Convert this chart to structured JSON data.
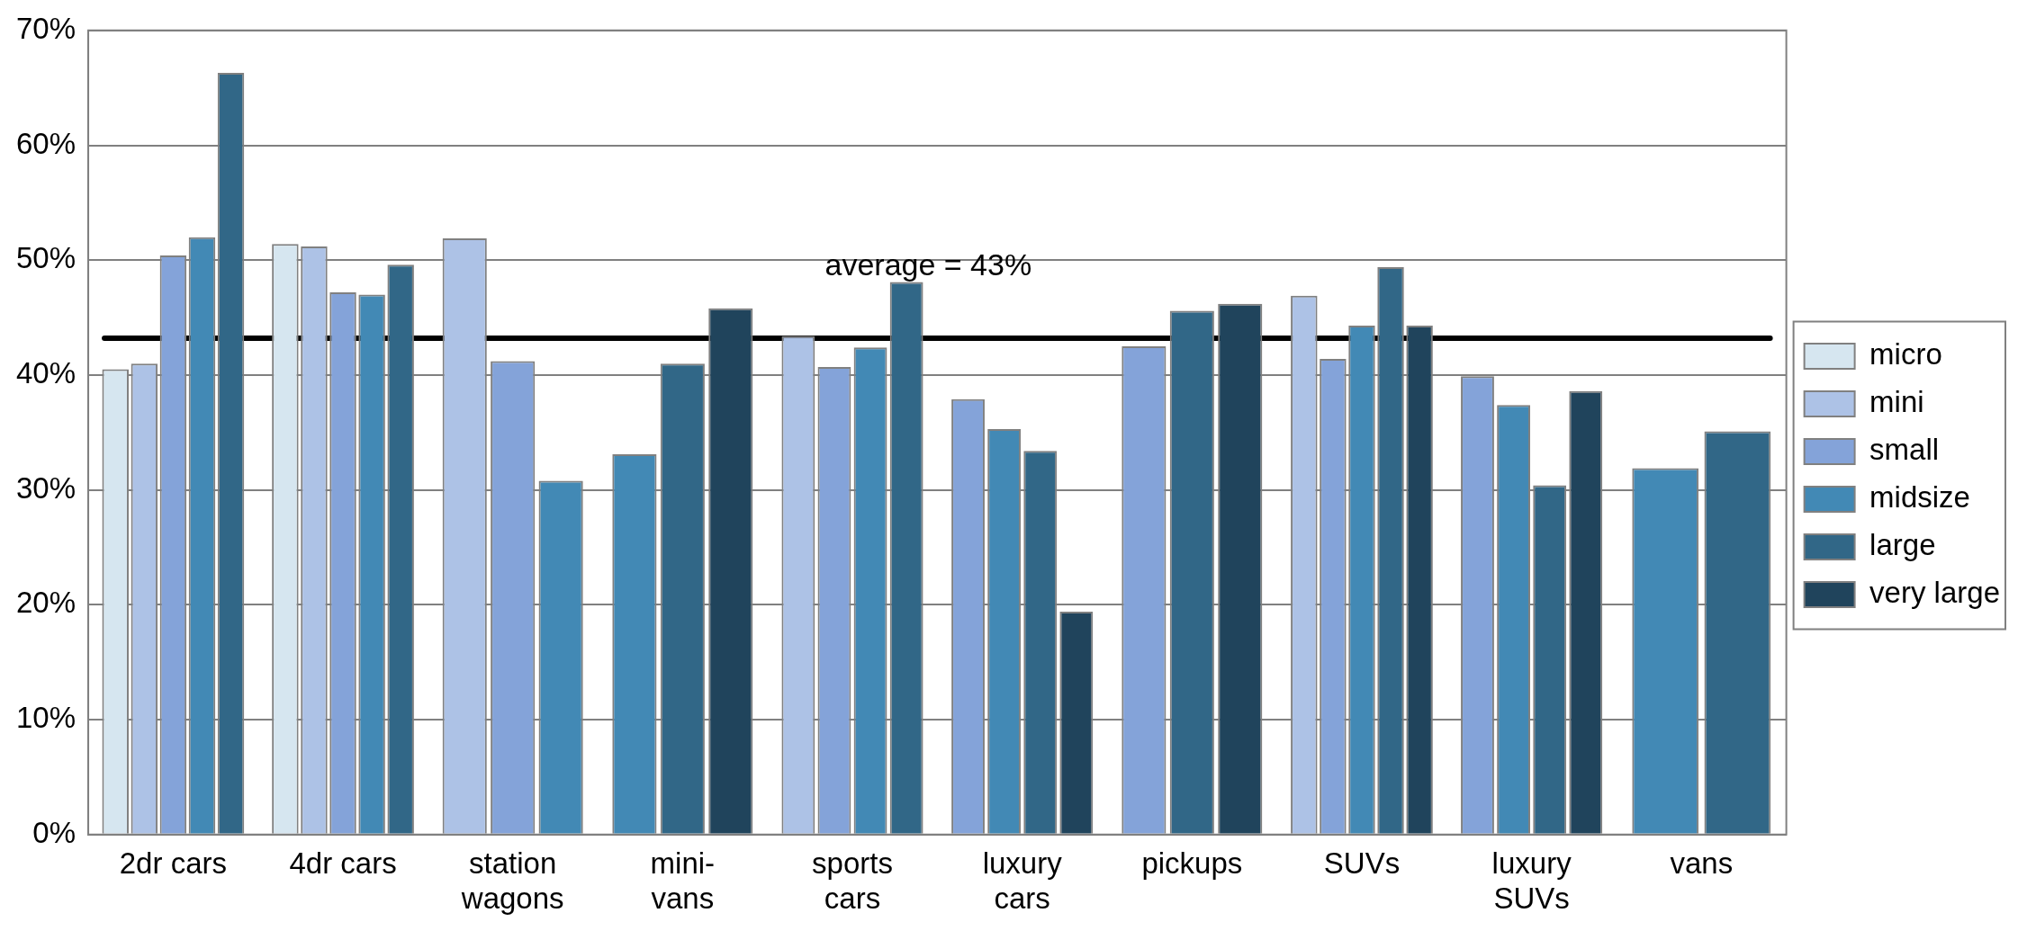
{
  "chart_data": {
    "type": "bar",
    "categories": [
      "2dr cars",
      "4dr cars",
      "station\nwagons",
      "mini-\nvans",
      "sports\ncars",
      "luxury\ncars",
      "pickups",
      "SUVs",
      "luxury\nSUVs",
      "vans"
    ],
    "series": [
      {
        "name": "micro",
        "color": "#d6e6f0",
        "values": [
          40.5,
          51.4,
          null,
          null,
          null,
          null,
          null,
          null,
          null,
          null
        ]
      },
      {
        "name": "mini",
        "color": "#adc2e6",
        "values": [
          41.0,
          51.2,
          51.9,
          null,
          43.4,
          null,
          null,
          46.9,
          null,
          null
        ]
      },
      {
        "name": "small",
        "color": "#84a3d9",
        "values": [
          50.4,
          47.2,
          41.2,
          null,
          40.7,
          37.9,
          42.5,
          41.4,
          39.9,
          null
        ]
      },
      {
        "name": "midsize",
        "color": "#4289b5",
        "values": [
          52.0,
          47.0,
          30.8,
          33.1,
          42.4,
          35.3,
          null,
          44.3,
          37.4,
          31.9
        ]
      },
      {
        "name": "large",
        "color": "#316787",
        "values": [
          66.3,
          49.6,
          null,
          41.0,
          48.1,
          33.4,
          45.6,
          49.4,
          30.4,
          35.1
        ]
      },
      {
        "name": "very large",
        "color": "#20445c",
        "values": [
          null,
          null,
          null,
          45.8,
          null,
          19.4,
          46.2,
          44.3,
          38.6,
          null
        ]
      }
    ],
    "ylim": [
      0,
      70
    ],
    "yticks": [
      {
        "value": 0,
        "label": "0%"
      },
      {
        "value": 10,
        "label": "10%"
      },
      {
        "value": 20,
        "label": "20%"
      },
      {
        "value": 30,
        "label": "30%"
      },
      {
        "value": 40,
        "label": "40%"
      },
      {
        "value": 50,
        "label": "50%"
      },
      {
        "value": 60,
        "label": "60%"
      },
      {
        "value": 70,
        "label": "70%"
      }
    ],
    "ref_lines": [
      {
        "axis": "y",
        "value": 43.2,
        "label": "average = 43%",
        "color": "#000000"
      }
    ],
    "grid": "y",
    "legend": "right"
  }
}
